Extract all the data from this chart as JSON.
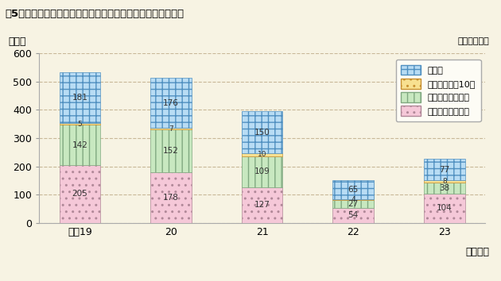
{
  "title": "図5　指定職及び行政職（一）８級以上の勧奨退職者数の推移",
  "ylabel": "（人）",
  "unit_label": "（単位：人）",
  "xlabel": "（年度）",
  "categories": [
    "平成19",
    "20",
    "21",
    "22",
    "23"
  ],
  "series": {
    "8kyu": [
      205,
      178,
      127,
      54,
      104
    ],
    "9kyu": [
      142,
      152,
      109,
      27,
      38
    ],
    "10kyu": [
      5,
      7,
      10,
      4,
      8
    ],
    "shitei": [
      181,
      176,
      150,
      65,
      77
    ]
  },
  "colors": {
    "8kyu": "#f5c8d8",
    "9kyu": "#c8e8c0",
    "10kyu": "#f8e090",
    "shitei": "#b8dcf4"
  },
  "edge_colors": {
    "8kyu": "#d090a8",
    "9kyu": "#90b890",
    "10kyu": "#d8a840",
    "shitei": "#80b0d8"
  },
  "legend_labels": {
    "shitei": "指定職",
    "10kyu": "行政職（一）10級",
    "9kyu": "行政職（一）９級",
    "8kyu": "行政職（一）８級"
  },
  "ylim": [
    0,
    600
  ],
  "yticks": [
    0,
    100,
    200,
    300,
    400,
    500,
    600
  ],
  "background_color": "#f7f3e3",
  "grid_color": "#c8b898",
  "bar_width": 0.45
}
